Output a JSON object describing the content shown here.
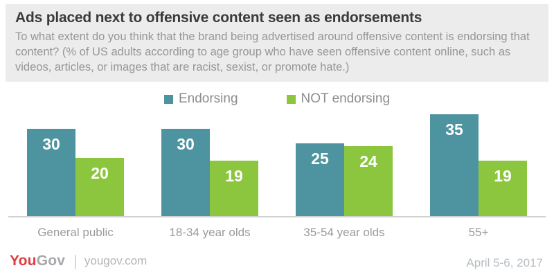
{
  "header": {
    "title": "Ads placed next to offensive content seen as endorsements",
    "subtitle": "To what extent do you think that the brand being advertised around offensive content is endorsing that content? (% of US adults according to age group who have seen offensive content online, such as videos, articles, or images that are racist, sexist, or promote hate.)"
  },
  "chart_data": {
    "type": "bar",
    "categories": [
      "General public",
      "18-34 year olds",
      "35-54 year olds",
      "55+"
    ],
    "series": [
      {
        "name": "Endorsing",
        "color": "#4e94a0",
        "values": [
          30,
          30,
          25,
          35
        ]
      },
      {
        "name": "NOT endorsing",
        "color": "#8cc63f",
        "values": [
          20,
          19,
          24,
          19
        ]
      }
    ],
    "title": "Ads placed next to offensive content seen as endorsements",
    "xlabel": "",
    "ylabel": "% of US adults",
    "ylim": [
      0,
      37.5
    ],
    "grid": false,
    "legend_position": "top",
    "value_labels": true
  },
  "footer": {
    "logo_you": "You",
    "logo_gov": "Gov",
    "site": "yougov.com",
    "date": "April 5-6, 2017"
  }
}
